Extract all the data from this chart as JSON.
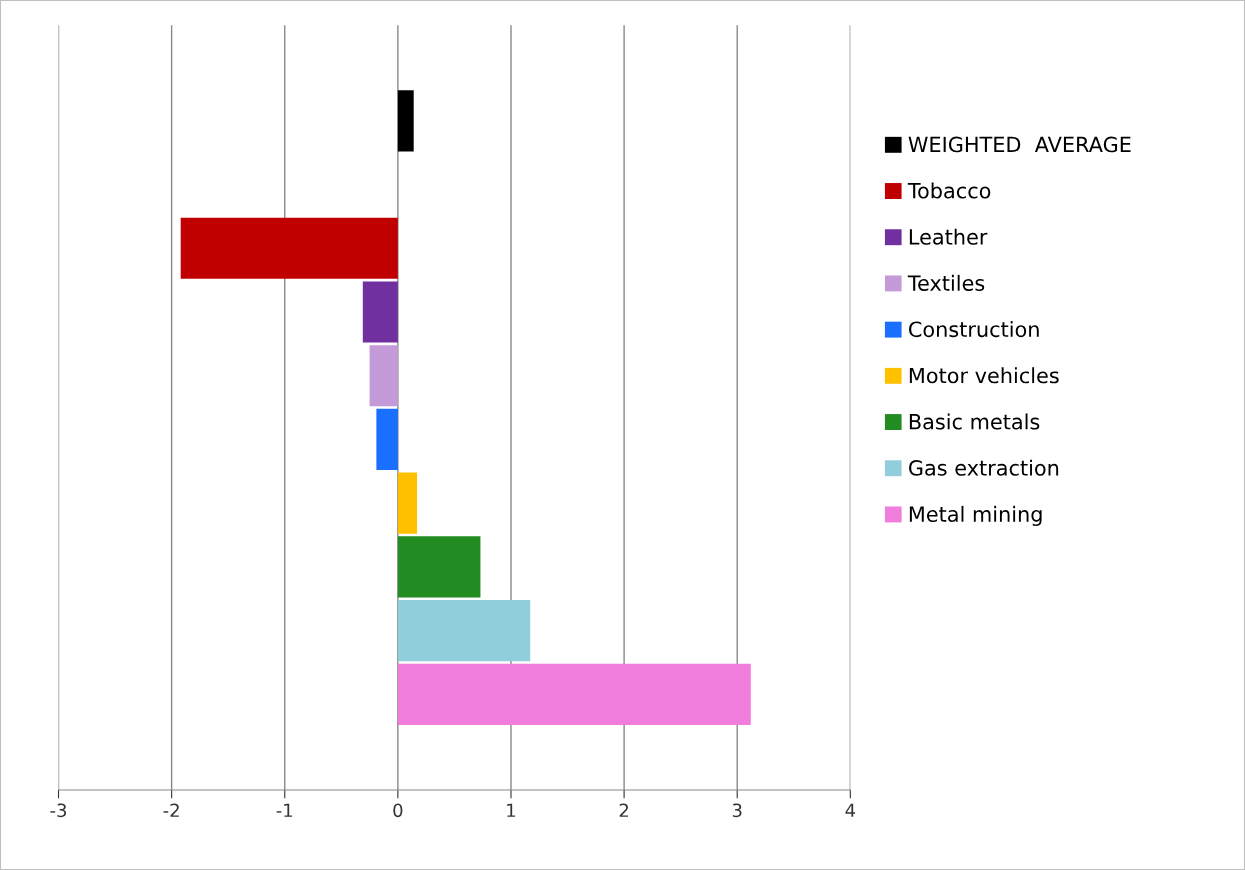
{
  "chart_data": {
    "type": "bar",
    "orientation": "horizontal",
    "categories": [
      null,
      null,
      null,
      null,
      null,
      null,
      null,
      null,
      null,
      null,
      null,
      null
    ],
    "series": [
      {
        "name": "WEIGHTED  AVERAGE",
        "color": "#000000",
        "values": [
          null,
          0.14,
          null,
          null,
          null,
          null,
          null,
          null,
          null,
          null,
          null,
          null
        ]
      },
      {
        "name": "Tobacco",
        "color": "#c00000",
        "values": [
          null,
          null,
          null,
          -1.92,
          null,
          null,
          null,
          null,
          null,
          null,
          null,
          null
        ]
      },
      {
        "name": "Leather",
        "color": "#7030a0",
        "values": [
          null,
          null,
          null,
          null,
          -0.31,
          null,
          null,
          null,
          null,
          null,
          null,
          null
        ]
      },
      {
        "name": "Textiles",
        "color": "#c49ad8",
        "values": [
          null,
          null,
          null,
          null,
          null,
          -0.25,
          null,
          null,
          null,
          null,
          null,
          null
        ]
      },
      {
        "name": "Construction",
        "color": "#1a6fff",
        "values": [
          null,
          null,
          null,
          null,
          null,
          null,
          -0.19,
          null,
          null,
          null,
          null,
          null
        ]
      },
      {
        "name": "Motor vehicles",
        "color": "#ffc000",
        "values": [
          null,
          null,
          null,
          null,
          null,
          null,
          null,
          0.17,
          null,
          null,
          null,
          null
        ]
      },
      {
        "name": "Basic metals",
        "color": "#228b22",
        "values": [
          null,
          null,
          null,
          null,
          null,
          null,
          null,
          null,
          0.73,
          null,
          null,
          null
        ]
      },
      {
        "name": "Gas extraction",
        "color": "#92cddc",
        "values": [
          null,
          null,
          null,
          null,
          null,
          null,
          null,
          null,
          null,
          1.17,
          null,
          null
        ]
      },
      {
        "name": "Metal mining",
        "color": "#f07ddc",
        "values": [
          null,
          null,
          null,
          null,
          null,
          null,
          null,
          null,
          null,
          null,
          3.12,
          null
        ]
      }
    ],
    "xlim": [
      -3,
      4
    ],
    "xticks": [
      -3,
      -2,
      -1,
      0,
      1,
      2,
      3,
      4
    ],
    "grid": "x",
    "legend": "right",
    "tick_labels": "x"
  }
}
